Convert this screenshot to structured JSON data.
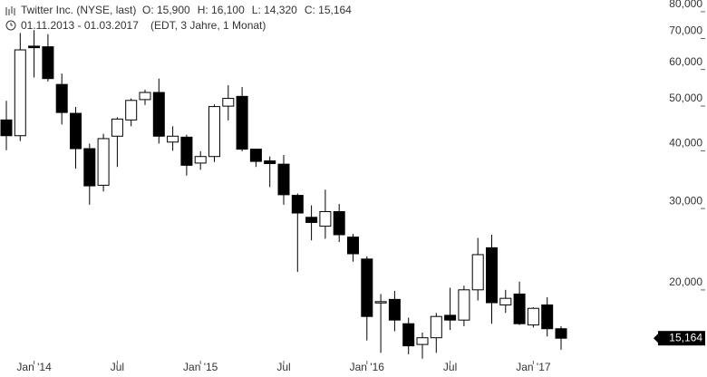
{
  "chart_data": {
    "type": "candlestick",
    "title": "Twitter Inc. (NYSE, last)",
    "quote": [
      "O: 15,900",
      "H: 16,100",
      "L: 14,320",
      "C: 15,164"
    ],
    "subtitle": "01.11.2013 - 01.03.2017",
    "note": "(EDT, 3 Jahre, 1 Monat)",
    "categories": [
      null,
      null,
      "Jan '14",
      null,
      null,
      null,
      null,
      null,
      "Jul",
      null,
      null,
      null,
      null,
      null,
      "Jan '15",
      null,
      null,
      null,
      null,
      null,
      "Jul",
      null,
      null,
      null,
      null,
      null,
      "Jan '16",
      null,
      null,
      null,
      null,
      null,
      "Jul",
      null,
      null,
      null,
      null,
      null,
      "Jan '17",
      null,
      null
    ],
    "open": [
      45.0,
      41.6,
      65.0,
      64.8,
      53.7,
      46.5,
      39.0,
      32.5,
      41.5,
      45.0,
      49.8,
      51.6,
      40.3,
      41.3,
      36.3,
      37.5,
      48.2,
      50.6,
      38.9,
      36.7,
      36.1,
      30.9,
      27.7,
      26.5,
      28.5,
      25.1,
      22.5,
      18.1,
      18.4,
      16.3,
      14.7,
      15.2,
      17.0,
      16.6,
      19.3,
      23.8,
      17.9,
      18.9,
      16.2,
      17.9,
      15.9
    ],
    "high": [
      49.5,
      69.4,
      70.4,
      69.0,
      56.7,
      48.0,
      40.0,
      42.0,
      45.6,
      50.1,
      52.3,
      55.3,
      43.6,
      41.8,
      38.5,
      48.6,
      53.5,
      53.0,
      38.9,
      37.5,
      37.8,
      31.2,
      29.4,
      31.8,
      29.6,
      25.5,
      22.8,
      18.9,
      19.2,
      16.8,
      15.6,
      17.2,
      19.5,
      19.7,
      25.0,
      25.4,
      19.3,
      20.1,
      17.7,
      18.6,
      16.1
    ],
    "low": [
      38.7,
      40.5,
      55.6,
      54.5,
      44.0,
      35.3,
      29.5,
      31.5,
      35.6,
      43.6,
      48.5,
      40.0,
      38.6,
      34.1,
      35.1,
      36.5,
      44.9,
      38.5,
      35.6,
      32.2,
      29.5,
      21.1,
      24.7,
      24.9,
      24.5,
      22.2,
      15.0,
      14.1,
      15.7,
      14.0,
      13.7,
      14.1,
      15.8,
      16.1,
      18.3,
      16.3,
      17.2,
      16.2,
      16.0,
      15.3,
      14.32
    ],
    "close": [
      41.6,
      63.8,
      64.5,
      55.3,
      46.7,
      39.0,
      32.4,
      41.0,
      45.2,
      49.6,
      51.6,
      41.5,
      41.5,
      35.9,
      37.5,
      48.1,
      50.1,
      38.9,
      36.6,
      36.2,
      31.0,
      28.3,
      27.0,
      28.5,
      25.4,
      23.1,
      16.9,
      18.2,
      16.6,
      14.6,
      15.2,
      16.9,
      16.6,
      19.3,
      23.0,
      18.1,
      18.5,
      16.3,
      17.6,
      15.9,
      15.164
    ],
    "up_color": "#ffffff",
    "down_color": "#000000",
    "log_y": true,
    "ylim": [
      12.5,
      81.8
    ],
    "yticks": [
      {
        "value": 20,
        "label": "20,000"
      },
      {
        "value": 30,
        "label": "30,000"
      },
      {
        "value": 40,
        "label": "40,000"
      },
      {
        "value": 50,
        "label": "50,000"
      },
      {
        "value": 60,
        "label": "60,000"
      },
      {
        "value": 70,
        "label": "70,000"
      },
      {
        "value": 80,
        "label": "80,000"
      }
    ],
    "last_value": {
      "value": 15.164,
      "label": "15,164"
    }
  }
}
